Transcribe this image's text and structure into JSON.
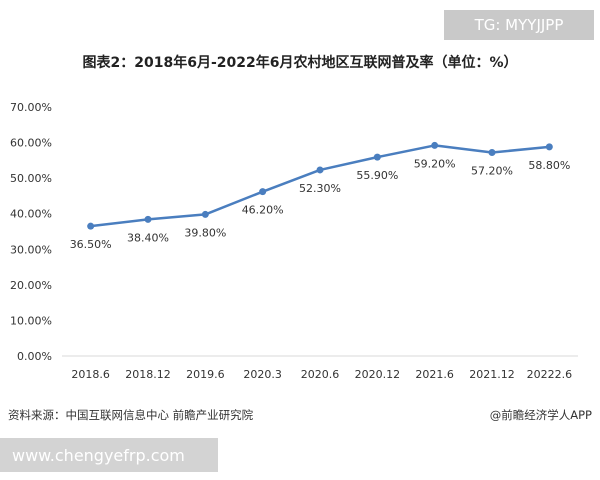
{
  "badge": "TG: MYYJJPP",
  "source": "资料来源：中国互联网信息中心 前瞻产业研究院",
  "credit": "@前瞻经济学人APP",
  "url_banner": "www.chengyefrp.com",
  "colors": {
    "line": "#4a7ebf",
    "axis": "#d9d9d9",
    "text": "#333333"
  },
  "chart_data": {
    "type": "line",
    "title": "图表2：2018年6月-2022年6月农村地区互联网普及率（单位：%）",
    "categories": [
      "2018.6",
      "2018.12",
      "2019.6",
      "2020.3",
      "2020.6",
      "2020.12",
      "2021.6",
      "2021.12",
      "20222.6"
    ],
    "values": [
      36.5,
      38.4,
      39.8,
      46.2,
      52.3,
      55.9,
      59.2,
      57.2,
      58.8
    ],
    "data_labels": [
      "36.50%",
      "38.40%",
      "39.80%",
      "46.20%",
      "52.30%",
      "55.90%",
      "59.20%",
      "57.20%",
      "58.80%"
    ],
    "y_ticks": [
      "0.00%",
      "10.00%",
      "20.00%",
      "30.00%",
      "40.00%",
      "50.00%",
      "60.00%",
      "70.00%"
    ],
    "ylim": [
      0,
      70
    ],
    "grid": false,
    "xlabel": "",
    "ylabel": ""
  }
}
